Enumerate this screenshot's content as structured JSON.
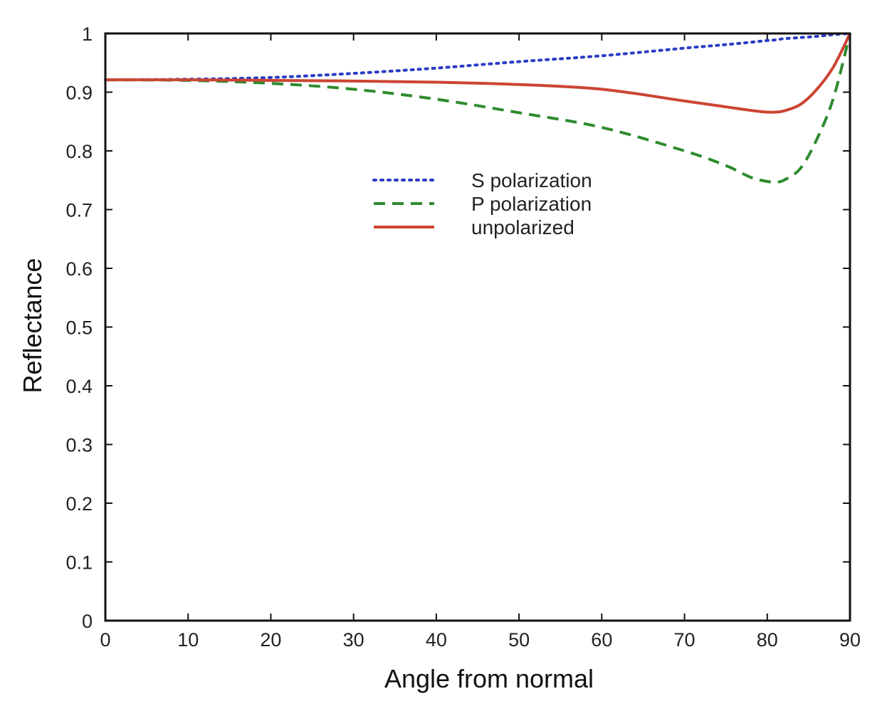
{
  "chart_data": {
    "type": "line",
    "title": "",
    "xlabel": "Angle from normal",
    "ylabel": "Reflectance",
    "xlim": [
      0,
      90
    ],
    "ylim": [
      0,
      1
    ],
    "x_ticks": [
      "0",
      "10",
      "20",
      "30",
      "40",
      "50",
      "60",
      "70",
      "80",
      "90"
    ],
    "y_ticks": [
      "0",
      "0.1",
      "0.2",
      "0.3",
      "0.4",
      "0.5",
      "0.6",
      "0.7",
      "0.8",
      "0.9",
      "1"
    ],
    "grid": false,
    "legend_position": "top-center",
    "x": [
      0,
      10,
      20,
      30,
      40,
      50,
      60,
      70,
      75,
      78,
      80,
      81,
      82,
      84,
      86,
      88,
      90
    ],
    "series": [
      {
        "name": "S polarization",
        "style": "dotted",
        "color": "#2b3bc4",
        "values": [
          0.921,
          0.922,
          0.925,
          0.932,
          0.941,
          0.952,
          0.962,
          0.975,
          0.981,
          0.985,
          0.988,
          0.989,
          0.991,
          0.993,
          0.995,
          0.998,
          1.0
        ]
      },
      {
        "name": "P polarization",
        "style": "dashed",
        "color": "#2e8b2e",
        "values": [
          0.921,
          0.92,
          0.915,
          0.905,
          0.888,
          0.865,
          0.84,
          0.8,
          0.775,
          0.755,
          0.748,
          0.747,
          0.75,
          0.77,
          0.82,
          0.89,
          1.0
        ]
      },
      {
        "name": "unpolarized",
        "style": "solid",
        "color": "#cc4433",
        "values": [
          0.921,
          0.921,
          0.92,
          0.919,
          0.917,
          0.913,
          0.905,
          0.885,
          0.875,
          0.869,
          0.866,
          0.866,
          0.868,
          0.879,
          0.905,
          0.943,
          1.0
        ]
      }
    ]
  }
}
